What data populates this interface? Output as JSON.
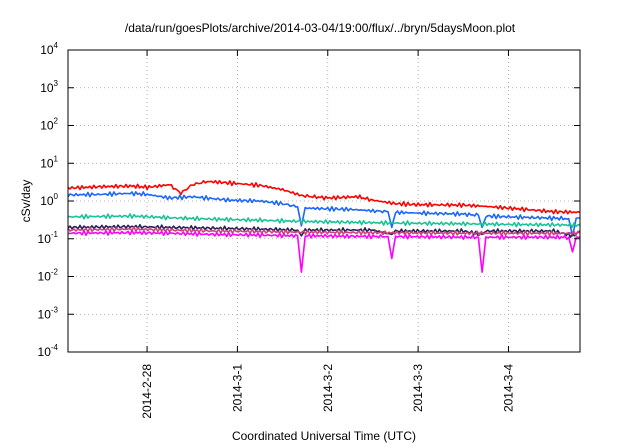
{
  "chart_data": {
    "type": "line",
    "title": "/data/run/goesPlots/archive/2014-03-04/19:00/flux/../bryn/5daysMoon.plot",
    "xlabel": "Coordinated Universal Time (UTC)",
    "ylabel": "cSv/day",
    "yscale": "log",
    "ylim": [
      0.0001,
      10000
    ],
    "xlim": [
      "2014-02-27T03:00",
      "2014-03-04T19:00"
    ],
    "grid": true,
    "legend": "none",
    "yticks": [
      {
        "base": "10",
        "exp": "-4",
        "value": 0.0001
      },
      {
        "base": "10",
        "exp": "-3",
        "value": 0.001
      },
      {
        "base": "10",
        "exp": "-2",
        "value": 0.01
      },
      {
        "base": "10",
        "exp": "-1",
        "value": 0.1
      },
      {
        "base": "10",
        "exp": "0",
        "value": 1
      },
      {
        "base": "10",
        "exp": "1",
        "value": 10
      },
      {
        "base": "10",
        "exp": "2",
        "value": 100
      },
      {
        "base": "10",
        "exp": "3",
        "value": 1000
      },
      {
        "base": "10",
        "exp": "4",
        "value": 10000
      }
    ],
    "xticks": [
      {
        "label": "2014-2-28",
        "date": "2014-02-28T00:00"
      },
      {
        "label": "2014-3-1",
        "date": "2014-03-01T00:00"
      },
      {
        "label": "2014-3-2",
        "date": "2014-03-02T00:00"
      },
      {
        "label": "2014-3-3",
        "date": "2014-03-03T00:00"
      },
      {
        "label": "2014-3-4",
        "date": "2014-03-04T00:00"
      }
    ],
    "series": [
      {
        "color": "#ff0000",
        "points": [
          [
            "2014-02-27T03:00",
            2.2
          ],
          [
            "2014-02-27T12:00",
            2.4
          ],
          [
            "2014-02-27T20:00",
            2.5
          ],
          [
            "2014-02-28T00:00",
            2.3
          ],
          [
            "2014-02-28T06:00",
            2.7
          ],
          [
            "2014-02-28T09:00",
            1.6
          ],
          [
            "2014-02-28T12:00",
            2.7
          ],
          [
            "2014-02-28T16:00",
            3.3
          ],
          [
            "2014-02-28T22:00",
            3.0
          ],
          [
            "2014-03-01T06:00",
            2.6
          ],
          [
            "2014-03-01T12:00",
            2.0
          ],
          [
            "2014-03-01T17:00",
            1.4
          ],
          [
            "2014-03-01T20:00",
            1.3
          ],
          [
            "2014-03-02T00:00",
            1.2
          ],
          [
            "2014-03-02T08:00",
            1.3
          ],
          [
            "2014-03-02T12:00",
            1.05
          ],
          [
            "2014-03-02T18:00",
            0.85
          ],
          [
            "2014-03-03T00:00",
            0.8
          ],
          [
            "2014-03-03T12:00",
            0.78
          ],
          [
            "2014-03-03T18:00",
            0.72
          ],
          [
            "2014-03-04T00:00",
            0.65
          ],
          [
            "2014-03-04T12:00",
            0.52
          ],
          [
            "2014-03-04T19:00",
            0.5
          ]
        ]
      },
      {
        "color": "#1a66ff",
        "points": [
          [
            "2014-02-27T03:00",
            1.45
          ],
          [
            "2014-02-27T12:00",
            1.5
          ],
          [
            "2014-02-27T20:00",
            1.6
          ],
          [
            "2014-02-28T00:00",
            1.5
          ],
          [
            "2014-02-28T06:00",
            1.2
          ],
          [
            "2014-02-28T12:00",
            1.3
          ],
          [
            "2014-02-28T22:00",
            1.05
          ],
          [
            "2014-03-01T06:00",
            1.0
          ],
          [
            "2014-03-01T12:00",
            0.85
          ],
          [
            "2014-03-01T16:00",
            0.7
          ],
          [
            "2014-03-01T17:00",
            0.22
          ],
          [
            "2014-03-01T18:00",
            0.65
          ],
          [
            "2014-03-02T00:00",
            0.62
          ],
          [
            "2014-03-02T06:00",
            0.6
          ],
          [
            "2014-03-02T12:00",
            0.55
          ],
          [
            "2014-03-02T16:00",
            0.52
          ],
          [
            "2014-03-02T17:00",
            0.2
          ],
          [
            "2014-03-02T18:00",
            0.5
          ],
          [
            "2014-03-03T00:00",
            0.48
          ],
          [
            "2014-03-03T12:00",
            0.45
          ],
          [
            "2014-03-03T16:00",
            0.42
          ],
          [
            "2014-03-03T17:00",
            0.2
          ],
          [
            "2014-03-03T18:00",
            0.4
          ],
          [
            "2014-03-04T00:00",
            0.38
          ],
          [
            "2014-03-04T12:00",
            0.35
          ],
          [
            "2014-03-04T16:00",
            0.34
          ],
          [
            "2014-03-04T17:00",
            0.12
          ],
          [
            "2014-03-04T18:00",
            0.35
          ],
          [
            "2014-03-04T19:00",
            0.36
          ]
        ]
      },
      {
        "color": "#19c398",
        "points": [
          [
            "2014-02-27T03:00",
            0.38
          ],
          [
            "2014-02-27T20:00",
            0.4
          ],
          [
            "2014-02-28T06:00",
            0.36
          ],
          [
            "2014-02-28T18:00",
            0.33
          ],
          [
            "2014-03-01T06:00",
            0.31
          ],
          [
            "2014-03-01T16:00",
            0.29
          ],
          [
            "2014-03-02T00:00",
            0.28
          ],
          [
            "2014-03-02T18:00",
            0.26
          ],
          [
            "2014-03-03T12:00",
            0.25
          ],
          [
            "2014-03-04T00:00",
            0.24
          ],
          [
            "2014-03-04T19:00",
            0.23
          ]
        ]
      },
      {
        "color": "#2b1f5a",
        "points": [
          [
            "2014-02-27T03:00",
            0.2
          ],
          [
            "2014-02-27T20:00",
            0.21
          ],
          [
            "2014-02-28T06:00",
            0.2
          ],
          [
            "2014-02-28T18:00",
            0.19
          ],
          [
            "2014-03-01T06:00",
            0.18
          ],
          [
            "2014-03-01T16:00",
            0.17
          ],
          [
            "2014-03-01T17:00",
            0.12
          ],
          [
            "2014-03-01T18:00",
            0.17
          ],
          [
            "2014-03-02T12:00",
            0.17
          ],
          [
            "2014-03-02T17:00",
            0.13
          ],
          [
            "2014-03-02T18:00",
            0.16
          ],
          [
            "2014-03-03T12:00",
            0.16
          ],
          [
            "2014-03-03T17:00",
            0.13
          ],
          [
            "2014-03-03T18:00",
            0.16
          ],
          [
            "2014-03-04T12:00",
            0.16
          ],
          [
            "2014-03-04T17:00",
            0.12
          ],
          [
            "2014-03-04T19:00",
            0.16
          ]
        ]
      },
      {
        "color": "#cc4477",
        "points": [
          [
            "2014-02-27T03:00",
            0.17
          ],
          [
            "2014-02-27T20:00",
            0.18
          ],
          [
            "2014-02-28T06:00",
            0.17
          ],
          [
            "2014-02-28T18:00",
            0.16
          ],
          [
            "2014-03-01T06:00",
            0.155
          ],
          [
            "2014-03-01T16:00",
            0.15
          ],
          [
            "2014-03-02T12:00",
            0.145
          ],
          [
            "2014-03-03T12:00",
            0.14
          ],
          [
            "2014-03-04T12:00",
            0.14
          ],
          [
            "2014-03-04T19:00",
            0.14
          ]
        ]
      },
      {
        "color": "#ff00ff",
        "points": [
          [
            "2014-02-27T03:00",
            0.14
          ],
          [
            "2014-02-27T20:00",
            0.145
          ],
          [
            "2014-02-28T06:00",
            0.14
          ],
          [
            "2014-02-28T18:00",
            0.13
          ],
          [
            "2014-03-01T06:00",
            0.125
          ],
          [
            "2014-03-01T16:00",
            0.12
          ],
          [
            "2014-03-01T17:00",
            0.013
          ],
          [
            "2014-03-01T18:00",
            0.12
          ],
          [
            "2014-03-02T12:00",
            0.115
          ],
          [
            "2014-03-02T16:00",
            0.115
          ],
          [
            "2014-03-02T17:00",
            0.03
          ],
          [
            "2014-03-02T18:00",
            0.115
          ],
          [
            "2014-03-03T12:00",
            0.11
          ],
          [
            "2014-03-03T16:00",
            0.11
          ],
          [
            "2014-03-03T17:00",
            0.013
          ],
          [
            "2014-03-03T18:00",
            0.11
          ],
          [
            "2014-03-04T12:00",
            0.11
          ],
          [
            "2014-03-04T16:00",
            0.11
          ],
          [
            "2014-03-04T17:00",
            0.045
          ],
          [
            "2014-03-04T18:00",
            0.11
          ],
          [
            "2014-03-04T19:00",
            0.11
          ]
        ]
      }
    ]
  }
}
